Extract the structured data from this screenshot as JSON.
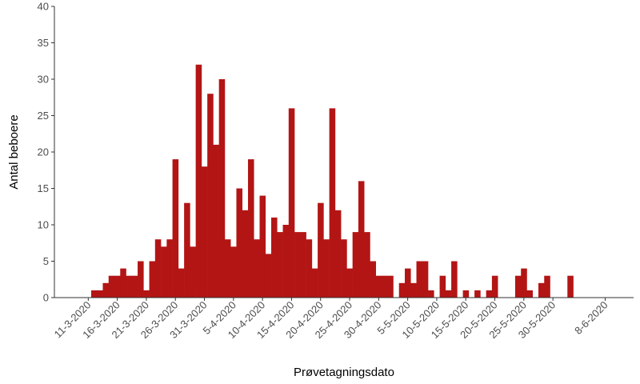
{
  "chart_data": {
    "type": "bar",
    "xlabel": "Prøvetagningsdato",
    "ylabel": "Antal beboere",
    "ylim": [
      0,
      40
    ],
    "yticks": [
      0,
      5,
      10,
      15,
      20,
      25,
      30,
      35,
      40
    ],
    "xticks": [
      "11-3-2020",
      "16-3-2020",
      "21-3-2020",
      "26-3-2020",
      "31-3-2020",
      "5-4-2020",
      "10-4-2020",
      "15-4-2020",
      "20-4-2020",
      "25-4-2020",
      "30-4-2020",
      "5-5-2020",
      "10-5-2020",
      "15-5-2020",
      "20-5-2020",
      "25-5-2020",
      "30-5-2020",
      "8-6-2020"
    ],
    "start_date": "2020-03-06",
    "bar_color": "#b31515",
    "grid": false,
    "values": [
      0,
      0,
      0,
      0,
      0,
      0,
      1,
      1,
      2,
      3,
      3,
      4,
      3,
      3,
      5,
      1,
      5,
      8,
      7,
      8,
      19,
      4,
      13,
      7,
      32,
      18,
      28,
      21,
      30,
      8,
      7,
      15,
      12,
      19,
      8,
      14,
      6,
      11,
      9,
      10,
      26,
      9,
      9,
      8,
      4,
      13,
      8,
      26,
      12,
      8,
      4,
      9,
      16,
      9,
      5,
      3,
      3,
      3,
      0,
      2,
      4,
      2,
      5,
      5,
      1,
      0,
      3,
      1,
      5,
      0,
      1,
      0,
      1,
      0,
      1,
      3,
      0,
      0,
      0,
      3,
      4,
      1,
      0,
      2,
      3,
      0,
      0,
      0,
      3,
      0,
      0,
      0,
      0,
      0,
      0,
      0,
      0,
      0,
      0,
      0
    ]
  }
}
